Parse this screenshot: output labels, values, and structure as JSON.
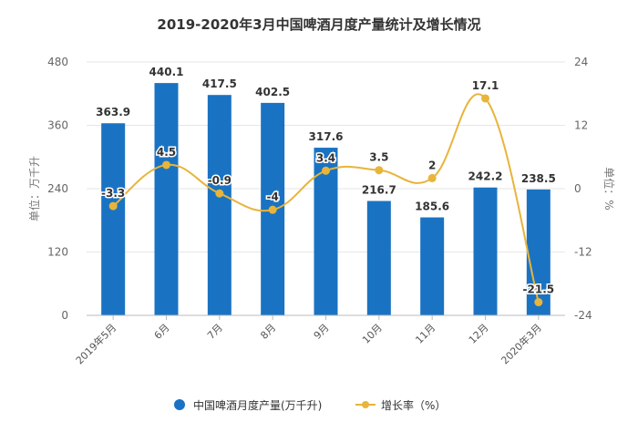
{
  "chart_data": {
    "type": "bar",
    "title": "2019-2020年3月中国啤酒月度产量统计及增长情况",
    "categories": [
      "2019年5月",
      "6月",
      "7月",
      "8月",
      "9月",
      "10月",
      "11月",
      "12月",
      "2020年3月"
    ],
    "series": [
      {
        "name": "中国啤酒月度产量(万千升)",
        "type": "bar",
        "axis": "left",
        "color": "#1a73c2",
        "values": [
          363.9,
          440.1,
          417.5,
          402.5,
          317.6,
          216.7,
          185.6,
          242.2,
          238.5
        ]
      },
      {
        "name": "增长率（%）",
        "type": "line",
        "axis": "right",
        "color": "#e8b43a",
        "values": [
          -3.3,
          4.5,
          -0.9,
          -4,
          3.4,
          3.5,
          2,
          17.1,
          -21.5
        ]
      }
    ],
    "y_left": {
      "label": "单位：万千升",
      "ylim": [
        0,
        480
      ],
      "ticks": [
        0,
        120,
        240,
        360,
        480
      ]
    },
    "y_right": {
      "label": "单位：%",
      "ylim": [
        -24,
        24
      ],
      "ticks": [
        -24,
        -12,
        0,
        12,
        24
      ]
    },
    "xlabel": "",
    "grid": true,
    "legend": {
      "position": "bottom",
      "entries": [
        "中国啤酒月度产量(万千升)",
        "增长率（%）"
      ]
    }
  }
}
